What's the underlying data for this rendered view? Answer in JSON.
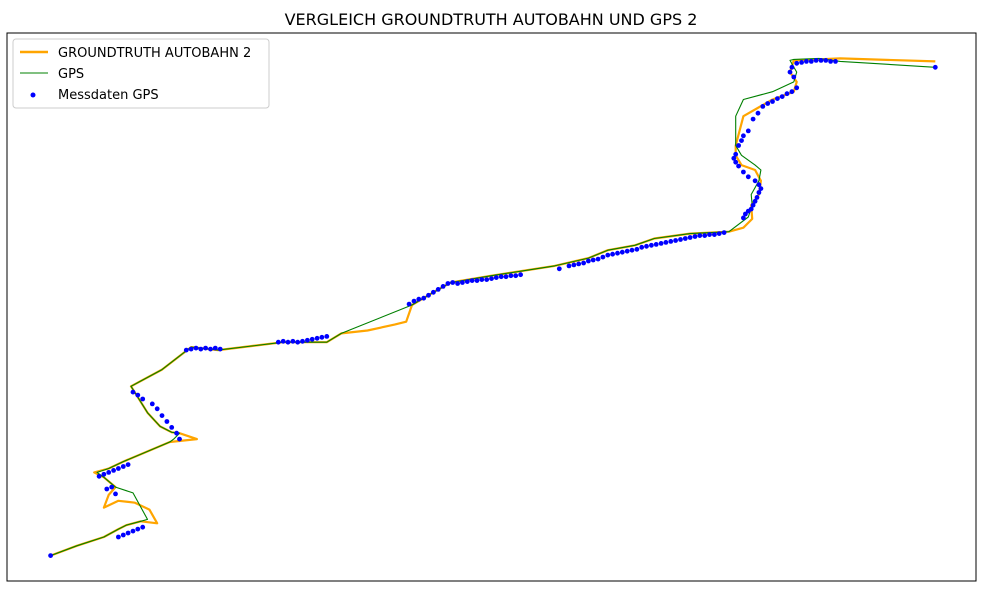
{
  "chart_data": {
    "type": "line",
    "title": "VERGLEICH GROUNDTRUTH AUTOBAHN UND GPS 2",
    "xlabel": "",
    "ylabel": "",
    "xlim": [
      0,
      1000
    ],
    "ylim": [
      0,
      560
    ],
    "grid": false,
    "axis_ticks": false,
    "legend_position": "upper-left",
    "colors": {
      "groundtruth": "#ffa500",
      "gps": "#008000",
      "scatter": "#0000ff"
    },
    "legend": [
      {
        "key": "groundtruth",
        "label": "GROUNDTRUTH AUTOBAHN 2"
      },
      {
        "key": "gps",
        "label": "GPS"
      },
      {
        "key": "scatter",
        "label": "Messdaten GPS"
      }
    ],
    "series": [
      {
        "name": "GROUNDTRUTH AUTOBAHN 2",
        "kind": "line",
        "x": [
          45,
          72,
          100,
          115,
          123,
          138,
          155,
          147,
          132,
          115,
          100,
          105,
          112,
          100,
          90,
          105,
          120,
          168,
          196,
          178,
          170,
          158,
          145,
          128,
          160,
          190,
          218,
          285,
          330,
          345,
          372,
          400,
          412,
          418,
          440,
          458,
          500,
          565,
          600,
          620,
          648,
          668,
          705,
          745,
          760,
          769,
          768,
          776,
          778,
          772,
          758,
          752,
          752,
          760,
          790,
          812,
          815,
          808,
          812,
          838,
          860,
          958
        ],
        "y": [
          26,
          36,
          45,
          53,
          57,
          61,
          59,
          73,
          80,
          82,
          75,
          88,
          96,
          106,
          111,
          115,
          122,
          142,
          145,
          151,
          152,
          158,
          172,
          199,
          216,
          239,
          236,
          244,
          244,
          253,
          256,
          262,
          265,
          282,
          295,
          305,
          312,
          322,
          330,
          338,
          343,
          350,
          355,
          357,
          361,
          370,
          384,
          395,
          409,
          420,
          425,
          435,
          445,
          475,
          492,
          500,
          510,
          520,
          532,
          533,
          534,
          531
        ]
      },
      {
        "name": "GPS",
        "kind": "line",
        "x": [
          45,
          72,
          100,
          115,
          123,
          138,
          145,
          130,
          112,
          100,
          93,
          105,
          120,
          168,
          172,
          178,
          170,
          158,
          145,
          128,
          160,
          190,
          218,
          285,
          330,
          345,
          418,
          440,
          458,
          500,
          565,
          600,
          620,
          648,
          668,
          705,
          745,
          765,
          769,
          768,
          776,
          778,
          772,
          758,
          752,
          752,
          760,
          790,
          812,
          815,
          808,
          812,
          838,
          860,
          958
        ],
        "y": [
          26,
          36,
          45,
          53,
          57,
          61,
          63,
          90,
          96,
          106,
          111,
          115,
          122,
          142,
          145,
          151,
          152,
          158,
          172,
          199,
          216,
          239,
          236,
          244,
          244,
          253,
          282,
          295,
          305,
          312,
          322,
          330,
          338,
          343,
          350,
          355,
          357,
          372,
          384,
          395,
          409,
          420,
          425,
          435,
          445,
          475,
          492,
          500,
          510,
          520,
          532,
          533,
          534,
          531,
          525
        ]
      },
      {
        "name": "Messdaten GPS",
        "kind": "scatter",
        "x": [
          45,
          115,
          120,
          125,
          130,
          135,
          140,
          95,
          100,
          105,
          110,
          115,
          120,
          125,
          103,
          108,
          112,
          130,
          135,
          140,
          150,
          155,
          160,
          165,
          170,
          175,
          178,
          185,
          190,
          195,
          200,
          205,
          210,
          215,
          220,
          280,
          285,
          290,
          295,
          300,
          305,
          310,
          315,
          320,
          325,
          330,
          415,
          420,
          425,
          430,
          435,
          440,
          445,
          450,
          455,
          460,
          465,
          470,
          475,
          480,
          485,
          490,
          495,
          500,
          505,
          510,
          515,
          520,
          525,
          530,
          570,
          580,
          585,
          590,
          595,
          600,
          605,
          610,
          615,
          620,
          625,
          630,
          635,
          640,
          645,
          650,
          655,
          660,
          665,
          670,
          675,
          680,
          685,
          690,
          695,
          700,
          705,
          710,
          715,
          720,
          725,
          730,
          735,
          740,
          760,
          762,
          765,
          768,
          770,
          772,
          774,
          776,
          778,
          776,
          772,
          765,
          760,
          755,
          752,
          750,
          752,
          755,
          758,
          760,
          765,
          770,
          775,
          780,
          785,
          790,
          795,
          800,
          805,
          810,
          815,
          812,
          808,
          810,
          815,
          820,
          825,
          830,
          835,
          840,
          845,
          850,
          855,
          958
        ],
        "y": [
          26,
          45,
          47,
          49,
          51,
          53,
          55,
          107,
          109,
          111,
          113,
          115,
          117,
          119,
          94,
          96,
          89,
          193,
          190,
          186,
          181,
          176,
          169,
          163,
          157,
          151,
          145,
          236,
          237,
          238,
          237,
          238,
          237,
          238,
          237,
          244,
          245,
          244,
          245,
          244,
          245,
          246,
          247,
          248,
          249,
          250,
          283,
          286,
          288,
          289,
          292,
          295,
          298,
          301,
          304,
          305,
          304,
          305,
          306,
          307,
          307,
          308,
          308,
          309,
          310,
          311,
          311,
          312,
          312,
          313,
          319,
          322,
          323,
          324,
          325,
          327,
          328,
          329,
          331,
          333,
          334,
          335,
          336,
          337,
          338,
          339,
          341,
          342,
          343,
          344,
          345,
          346,
          347,
          348,
          349,
          350,
          351,
          352,
          353,
          353,
          354,
          354,
          355,
          356,
          371,
          375,
          378,
          380,
          384,
          388,
          392,
          397,
          401,
          405,
          409,
          413,
          418,
          424,
          428,
          432,
          436,
          445,
          450,
          455,
          460,
          472,
          478,
          485,
          488,
          490,
          493,
          495,
          498,
          500,
          504,
          515,
          520,
          525,
          529,
          530,
          531,
          531,
          532,
          532,
          532,
          531,
          531,
          525
        ]
      }
    ]
  }
}
